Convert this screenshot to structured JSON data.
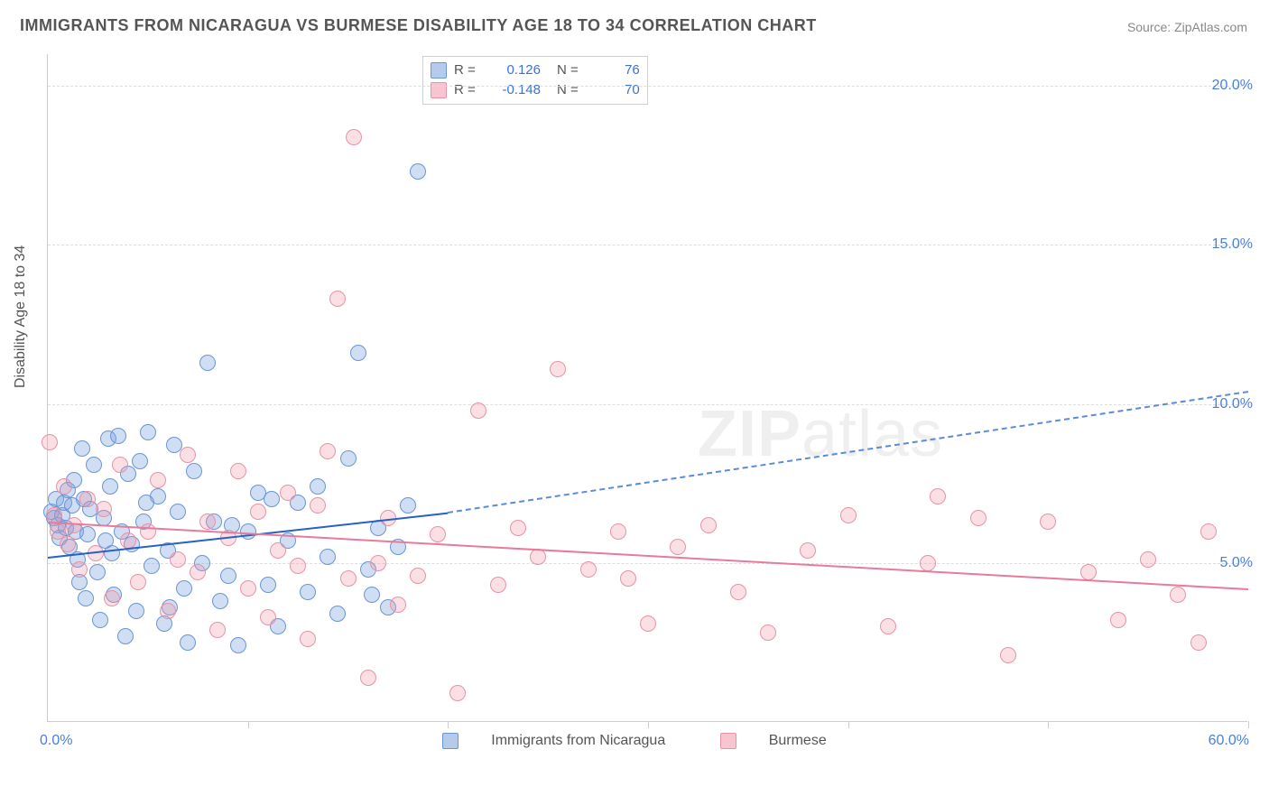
{
  "title": "IMMIGRANTS FROM NICARAGUA VS BURMESE DISABILITY AGE 18 TO 34 CORRELATION CHART",
  "source_label": "Source:",
  "source_name": "ZipAtlas.com",
  "watermark_a": "ZIP",
  "watermark_b": "atlas",
  "chart": {
    "type": "scatter",
    "ylabel": "Disability Age 18 to 34",
    "xlim": [
      0,
      60
    ],
    "ylim": [
      0,
      21
    ],
    "yticks": [
      5,
      10,
      15,
      20
    ],
    "ytick_labels": [
      "5.0%",
      "10.0%",
      "15.0%",
      "20.0%"
    ],
    "xticks": [
      0,
      10,
      20,
      30,
      40,
      50,
      60
    ],
    "x_origin_label": "0.0%",
    "x_max_label": "60.0%",
    "background_color": "#ffffff",
    "grid_color": "#dddddd",
    "axis_color": "#cccccc",
    "point_radius": 9,
    "series": [
      {
        "name": "Immigrants from Nicaragua",
        "color_fill": "rgba(120,160,220,0.35)",
        "color_stroke": "#6a95d6",
        "r_label": "R =",
        "r_value": "0.126",
        "n_label": "N =",
        "n_value": "76",
        "trend": {
          "x1": 0,
          "y1": 5.2,
          "x2_solid": 20,
          "y2_solid": 6.6,
          "x2_dash": 60,
          "y2_dash": 10.4,
          "stroke": "#2860c4",
          "dash_stroke": "#5a8bdc"
        },
        "points": [
          [
            0.2,
            6.6
          ],
          [
            0.3,
            6.4
          ],
          [
            0.4,
            7.0
          ],
          [
            0.5,
            6.2
          ],
          [
            0.6,
            5.8
          ],
          [
            0.7,
            6.5
          ],
          [
            0.8,
            6.9
          ],
          [
            0.9,
            6.1
          ],
          [
            1.0,
            7.3
          ],
          [
            1.1,
            5.5
          ],
          [
            1.2,
            6.8
          ],
          [
            1.3,
            7.6
          ],
          [
            1.4,
            6.0
          ],
          [
            1.5,
            5.1
          ],
          [
            1.6,
            4.4
          ],
          [
            1.7,
            8.6
          ],
          [
            1.8,
            7.0
          ],
          [
            1.9,
            3.9
          ],
          [
            2.0,
            5.9
          ],
          [
            2.1,
            6.7
          ],
          [
            2.3,
            8.1
          ],
          [
            2.5,
            4.7
          ],
          [
            2.6,
            3.2
          ],
          [
            2.8,
            6.4
          ],
          [
            3.0,
            8.9
          ],
          [
            3.1,
            7.4
          ],
          [
            3.2,
            5.3
          ],
          [
            3.3,
            4.0
          ],
          [
            3.5,
            9.0
          ],
          [
            3.7,
            6.0
          ],
          [
            3.9,
            2.7
          ],
          [
            4.0,
            7.8
          ],
          [
            4.2,
            5.6
          ],
          [
            4.4,
            3.5
          ],
          [
            4.6,
            8.2
          ],
          [
            4.8,
            6.3
          ],
          [
            5.0,
            9.1
          ],
          [
            5.2,
            4.9
          ],
          [
            5.5,
            7.1
          ],
          [
            5.8,
            3.1
          ],
          [
            6.0,
            5.4
          ],
          [
            6.3,
            8.7
          ],
          [
            6.5,
            6.6
          ],
          [
            6.8,
            4.2
          ],
          [
            7.0,
            2.5
          ],
          [
            7.3,
            7.9
          ],
          [
            7.7,
            5.0
          ],
          [
            8.0,
            11.3
          ],
          [
            8.3,
            6.3
          ],
          [
            8.6,
            3.8
          ],
          [
            9.0,
            4.6
          ],
          [
            9.5,
            2.4
          ],
          [
            10.0,
            6.0
          ],
          [
            10.5,
            7.2
          ],
          [
            11.0,
            4.3
          ],
          [
            11.5,
            3.0
          ],
          [
            12.0,
            5.7
          ],
          [
            12.5,
            6.9
          ],
          [
            13.0,
            4.1
          ],
          [
            13.5,
            7.4
          ],
          [
            14.0,
            5.2
          ],
          [
            14.5,
            3.4
          ],
          [
            15.0,
            8.3
          ],
          [
            15.5,
            11.6
          ],
          [
            16.0,
            4.8
          ],
          [
            16.5,
            6.1
          ],
          [
            17.0,
            3.6
          ],
          [
            17.5,
            5.5
          ],
          [
            18.0,
            6.8
          ],
          [
            18.5,
            17.3
          ],
          [
            16.2,
            4.0
          ],
          [
            11.2,
            7.0
          ],
          [
            9.2,
            6.2
          ],
          [
            6.1,
            3.6
          ],
          [
            4.9,
            6.9
          ],
          [
            2.9,
            5.7
          ]
        ]
      },
      {
        "name": "Burmese",
        "color_fill": "rgba(240,150,170,0.30)",
        "color_stroke": "#e892a5",
        "r_label": "R =",
        "r_value": "-0.148",
        "n_label": "N =",
        "n_value": "70",
        "trend": {
          "x1": 0,
          "y1": 6.3,
          "x2_solid": 60,
          "y2_solid": 4.2,
          "stroke": "#e87a9a"
        },
        "points": [
          [
            0.1,
            8.8
          ],
          [
            0.3,
            6.5
          ],
          [
            0.5,
            6.0
          ],
          [
            0.8,
            7.4
          ],
          [
            1.0,
            5.6
          ],
          [
            1.3,
            6.2
          ],
          [
            1.6,
            4.8
          ],
          [
            2.0,
            7.0
          ],
          [
            2.4,
            5.3
          ],
          [
            2.8,
            6.7
          ],
          [
            3.2,
            3.9
          ],
          [
            3.6,
            8.1
          ],
          [
            4.0,
            5.7
          ],
          [
            4.5,
            4.4
          ],
          [
            5.0,
            6.0
          ],
          [
            5.5,
            7.6
          ],
          [
            6.0,
            3.5
          ],
          [
            6.5,
            5.1
          ],
          [
            7.0,
            8.4
          ],
          [
            7.5,
            4.7
          ],
          [
            8.0,
            6.3
          ],
          [
            8.5,
            2.9
          ],
          [
            9.0,
            5.8
          ],
          [
            9.5,
            7.9
          ],
          [
            10.0,
            4.2
          ],
          [
            10.5,
            6.6
          ],
          [
            11.0,
            3.3
          ],
          [
            11.5,
            5.4
          ],
          [
            12.0,
            7.2
          ],
          [
            12.5,
            4.9
          ],
          [
            13.0,
            2.6
          ],
          [
            13.5,
            6.8
          ],
          [
            14.0,
            8.5
          ],
          [
            14.5,
            13.3
          ],
          [
            15.0,
            4.5
          ],
          [
            15.3,
            18.4
          ],
          [
            16.0,
            1.4
          ],
          [
            16.5,
            5.0
          ],
          [
            17.0,
            6.4
          ],
          [
            17.5,
            3.7
          ],
          [
            18.5,
            4.6
          ],
          [
            19.5,
            5.9
          ],
          [
            20.5,
            0.9
          ],
          [
            21.5,
            9.8
          ],
          [
            22.5,
            4.3
          ],
          [
            23.5,
            6.1
          ],
          [
            24.5,
            5.2
          ],
          [
            25.5,
            11.1
          ],
          [
            27.0,
            4.8
          ],
          [
            28.5,
            6.0
          ],
          [
            30.0,
            3.1
          ],
          [
            31.5,
            5.5
          ],
          [
            33.0,
            6.2
          ],
          [
            34.5,
            4.1
          ],
          [
            36.0,
            2.8
          ],
          [
            38.0,
            5.4
          ],
          [
            40.0,
            6.5
          ],
          [
            42.0,
            3.0
          ],
          [
            44.0,
            5.0
          ],
          [
            46.5,
            6.4
          ],
          [
            48.0,
            2.1
          ],
          [
            50.0,
            6.3
          ],
          [
            52.0,
            4.7
          ],
          [
            53.5,
            3.2
          ],
          [
            55.0,
            5.1
          ],
          [
            56.5,
            4.0
          ],
          [
            57.5,
            2.5
          ],
          [
            58.0,
            6.0
          ],
          [
            44.5,
            7.1
          ],
          [
            29.0,
            4.5
          ]
        ]
      }
    ],
    "legend_items": [
      "Immigrants from Nicaragua",
      "Burmese"
    ]
  }
}
